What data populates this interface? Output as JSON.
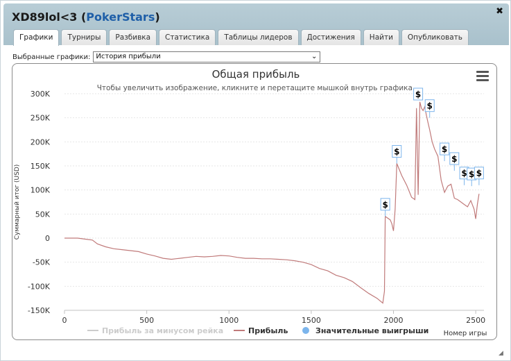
{
  "window": {
    "player": "XD89lol<3",
    "open_paren": " (",
    "site": "PokerStars",
    "close_paren": ")",
    "close_glyph": "✖"
  },
  "tabs": [
    {
      "label": "Графики",
      "active": true
    },
    {
      "label": "Турниры"
    },
    {
      "label": "Разбивка"
    },
    {
      "label": "Статистика"
    },
    {
      "label": "Таблицы лидеров"
    },
    {
      "label": "Достижения"
    },
    {
      "label": "Найти"
    },
    {
      "label": "Опубликовать"
    }
  ],
  "selector": {
    "label": "Выбранные графики:",
    "value": "История прибыли"
  },
  "chart_data": {
    "type": "line",
    "title": "Общая прибыль",
    "subtitle": "Чтобы увеличить изображение, кликните и перетащите мышкой внутрь графика.",
    "xlabel": "Номер игры",
    "ylabel": "Суммарный итог (USD)",
    "xlim": [
      0,
      2550
    ],
    "ylim": [
      -150000,
      300000
    ],
    "x_ticks": [
      0,
      500,
      1000,
      1500,
      2000,
      2500
    ],
    "y_ticks": [
      -150000,
      -100000,
      -50000,
      0,
      50000,
      100000,
      150000,
      200000,
      250000,
      300000
    ],
    "x_tick_labels": [
      "0",
      "500",
      "1000",
      "1500",
      "2000",
      "2500"
    ],
    "y_tick_labels": [
      "-150K",
      "-100K",
      "-50K",
      "0",
      "50K",
      "100K",
      "150K",
      "200K",
      "250K",
      "300K"
    ],
    "grid": true,
    "legend": {
      "placement": "bottom",
      "items": [
        {
          "label": "Прибыль за минусом рейка",
          "color": "#cccccc",
          "symbol": "line",
          "muted": true
        },
        {
          "label": "Прибыль",
          "color": "#c07a7a",
          "symbol": "line"
        },
        {
          "label": "Значительные выигрыши",
          "color": "#7cb5ec",
          "symbol": "circle"
        }
      ]
    },
    "series": [
      {
        "name": "Прибыль",
        "color": "#c07a7a",
        "x": [
          0,
          80,
          170,
          200,
          250,
          300,
          350,
          400,
          450,
          500,
          550,
          600,
          650,
          700,
          750,
          800,
          850,
          900,
          950,
          1000,
          1050,
          1100,
          1150,
          1200,
          1250,
          1300,
          1350,
          1400,
          1450,
          1500,
          1550,
          1600,
          1650,
          1700,
          1750,
          1800,
          1850,
          1900,
          1935,
          1945,
          1950,
          1980,
          1990,
          2000,
          2010,
          2020,
          2050,
          2080,
          2110,
          2130,
          2140,
          2150,
          2160,
          2170,
          2180,
          2190,
          2200,
          2210,
          2220,
          2235,
          2250,
          2270,
          2290,
          2310,
          2330,
          2350,
          2370,
          2390,
          2410,
          2430,
          2450,
          2470,
          2490,
          2500,
          2510,
          2520
        ],
        "y": [
          0,
          0,
          -4000,
          -12000,
          -18000,
          -22000,
          -24000,
          -26000,
          -28000,
          -33000,
          -37000,
          -42000,
          -44000,
          -42000,
          -40000,
          -38000,
          -39000,
          -38000,
          -36000,
          -37000,
          -40000,
          -42000,
          -42000,
          -43000,
          -43000,
          -44000,
          -45000,
          -47000,
          -50000,
          -55000,
          -63000,
          -68000,
          -77000,
          -82000,
          -90000,
          -103000,
          -115000,
          -125000,
          -135000,
          -110000,
          45000,
          38000,
          30000,
          15000,
          60000,
          155000,
          130000,
          110000,
          85000,
          80000,
          270000,
          90000,
          283000,
          270000,
          265000,
          273000,
          255000,
          240000,
          225000,
          200000,
          185000,
          170000,
          120000,
          95000,
          108000,
          112000,
          83000,
          80000,
          75000,
          70000,
          65000,
          78000,
          60000,
          40000,
          70000,
          92000
        ]
      }
    ],
    "big_wins": [
      {
        "x": 1950,
        "y": 45000
      },
      {
        "x": 2020,
        "y": 155000
      },
      {
        "x": 2150,
        "y": 290000
      },
      {
        "x": 2220,
        "y": 250000
      },
      {
        "x": 2310,
        "y": 160000
      },
      {
        "x": 2370,
        "y": 140000
      },
      {
        "x": 2430,
        "y": 110000
      },
      {
        "x": 2475,
        "y": 108000
      },
      {
        "x": 2520,
        "y": 110000
      }
    ],
    "big_win_label": "$"
  }
}
